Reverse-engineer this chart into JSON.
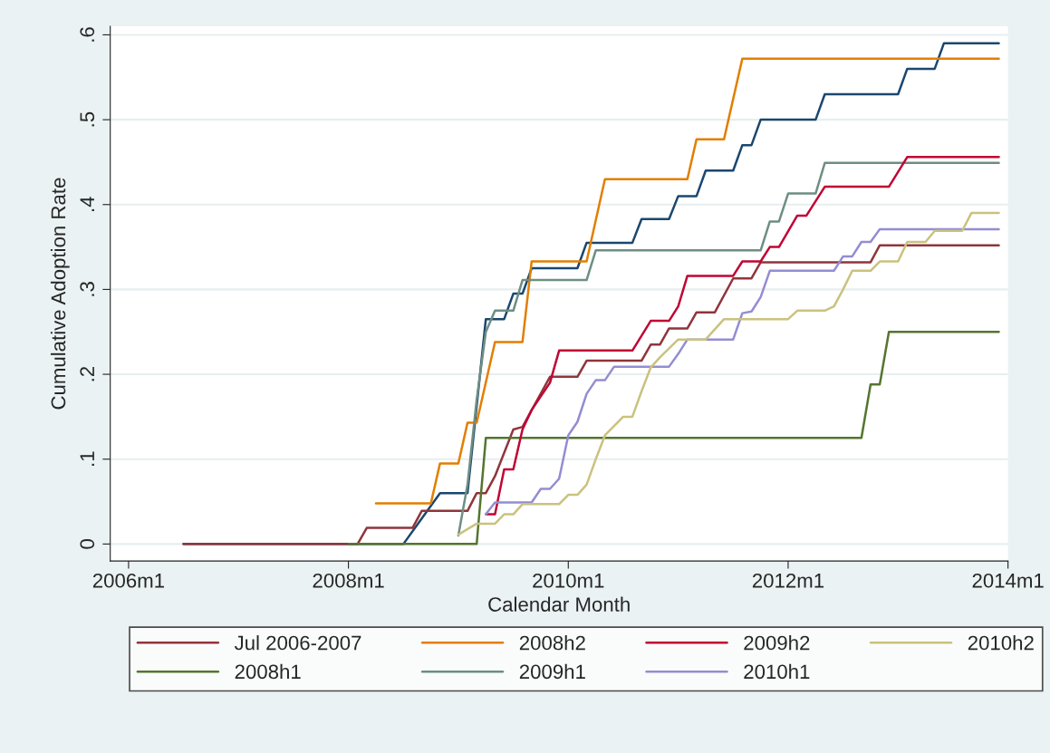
{
  "chart_data": {
    "type": "line",
    "xlabel": "Calendar Month",
    "ylabel": "Cumulative Adoption Rate",
    "xlim": [
      "2005-11",
      "2014-01"
    ],
    "ylim": [
      -0.02,
      0.61
    ],
    "xticks": [
      {
        "value": "2006-01",
        "label": "2006m1"
      },
      {
        "value": "2008-01",
        "label": "2008m1"
      },
      {
        "value": "2010-01",
        "label": "2010m1"
      },
      {
        "value": "2012-01",
        "label": "2012m1"
      },
      {
        "value": "2014-01",
        "label": "2014m1"
      }
    ],
    "yticks": [
      0,
      {
        "value": 0.1,
        "label": ".1"
      },
      {
        "value": 0.2,
        "label": ".2"
      },
      {
        "value": 0.3,
        "label": ".3"
      },
      {
        "value": 0.4,
        "label": ".4"
      },
      {
        "value": 0.5,
        "label": ".5"
      },
      {
        "value": 0.6,
        "label": ".6"
      }
    ],
    "grid": "y",
    "legend": "bottom",
    "marker": "none",
    "line_style": "solid",
    "series": [
      {
        "color": "#1a476f",
        "x": [
          "2006-07",
          "2008-07",
          "2008-09",
          "2008-11",
          "2009-02",
          "2009-04",
          "2009-06",
          "2009-07",
          "2009-08",
          "2009-09",
          "2010-02",
          "2010-03",
          "2010-08",
          "2010-09",
          "2010-12",
          "2011-01",
          "2011-03",
          "2011-04",
          "2011-07",
          "2011-08",
          "2011-09",
          "2011-10",
          "2012-04",
          "2012-05",
          "2013-01",
          "2013-02",
          "2013-05",
          "2013-06",
          "2013-12"
        ],
        "values": [
          0,
          0,
          0.03,
          0.06,
          0.06,
          0.265,
          0.265,
          0.295,
          0.295,
          0.325,
          0.325,
          0.355,
          0.355,
          0.383,
          0.383,
          0.41,
          0.41,
          0.44,
          0.44,
          0.47,
          0.47,
          0.5,
          0.5,
          0.53,
          0.53,
          0.56,
          0.56,
          0.59,
          0.59
        ]
      },
      {
        "name": "Jul 2006-2007",
        "color": "#90353b",
        "x": [
          "2006-07",
          "2008-02",
          "2008-03",
          "2008-08",
          "2008-09",
          "2009-02",
          "2009-03",
          "2009-04",
          "2009-05",
          "2009-07",
          "2009-08",
          "2009-11",
          "2010-02",
          "2010-03",
          "2010-09",
          "2010-10",
          "2010-11",
          "2010-12",
          "2011-02",
          "2011-03",
          "2011-05",
          "2011-07",
          "2011-09",
          "2011-10",
          "2012-10",
          "2012-11",
          "2013-12"
        ],
        "values": [
          0,
          0,
          0.019,
          0.019,
          0.039,
          0.039,
          0.06,
          0.06,
          0.08,
          0.135,
          0.138,
          0.197,
          0.197,
          0.216,
          0.216,
          0.235,
          0.235,
          0.254,
          0.254,
          0.273,
          0.273,
          0.313,
          0.313,
          0.332,
          0.332,
          0.352,
          0.352
        ]
      },
      {
        "name": "2008h1",
        "color": "#55752f",
        "x": [
          "2008-01",
          "2009-03",
          "2009-04",
          "2012-09",
          "2012-10",
          "2012-11",
          "2012-12",
          "2013-12"
        ],
        "values": [
          0,
          0,
          0.125,
          0.125,
          0.188,
          0.188,
          0.25,
          0.25
        ]
      },
      {
        "name": "2008h2",
        "color": "#e37e00",
        "x": [
          "2008-04",
          "2008-10",
          "2008-11",
          "2009-01",
          "2009-02",
          "2009-03",
          "2009-05",
          "2009-08",
          "2009-09",
          "2010-03",
          "2010-05",
          "2011-02",
          "2011-03",
          "2011-06",
          "2011-08",
          "2013-12"
        ],
        "values": [
          0.048,
          0.048,
          0.095,
          0.095,
          0.143,
          0.143,
          0.238,
          0.238,
          0.333,
          0.333,
          0.43,
          0.43,
          0.477,
          0.477,
          0.572,
          0.572
        ]
      },
      {
        "name": "2009h1",
        "color": "#6e8e84",
        "x": [
          "2009-01",
          "2009-02",
          "2009-03",
          "2009-04",
          "2009-05",
          "2009-07",
          "2009-08",
          "2010-03",
          "2010-04",
          "2011-10",
          "2011-11",
          "2011-12",
          "2012-01",
          "2012-04",
          "2012-05",
          "2013-12"
        ],
        "values": [
          0.01,
          0.07,
          0.17,
          0.25,
          0.275,
          0.275,
          0.311,
          0.311,
          0.346,
          0.346,
          0.38,
          0.38,
          0.413,
          0.413,
          0.449,
          0.449
        ]
      },
      {
        "name": "2009h2",
        "color": "#c10534",
        "x": [
          "2009-04",
          "2009-05",
          "2009-06",
          "2009-07",
          "2009-08",
          "2009-09",
          "2009-11",
          "2009-12",
          "2010-08",
          "2010-10",
          "2010-12",
          "2011-01",
          "2011-02",
          "2011-07",
          "2011-08",
          "2011-10",
          "2011-11",
          "2011-12",
          "2012-02",
          "2012-03",
          "2012-05",
          "2012-12",
          "2013-02",
          "2013-12"
        ],
        "values": [
          0.035,
          0.035,
          0.088,
          0.088,
          0.135,
          0.158,
          0.19,
          0.228,
          0.228,
          0.263,
          0.263,
          0.28,
          0.316,
          0.316,
          0.333,
          0.333,
          0.35,
          0.35,
          0.387,
          0.387,
          0.421,
          0.421,
          0.456,
          0.456
        ]
      },
      {
        "name": "2010h1",
        "color": "#938dd2",
        "x": [
          "2009-04",
          "2009-05",
          "2009-09",
          "2009-10",
          "2009-11",
          "2009-12",
          "2010-01",
          "2010-02",
          "2010-03",
          "2010-04",
          "2010-05",
          "2010-06",
          "2010-12",
          "2011-01",
          "2011-02",
          "2011-07",
          "2011-08",
          "2011-09",
          "2011-10",
          "2011-11",
          "2012-06",
          "2012-07",
          "2012-08",
          "2012-09",
          "2012-10",
          "2012-11",
          "2013-12"
        ],
        "values": [
          0.035,
          0.049,
          0.049,
          0.065,
          0.065,
          0.077,
          0.128,
          0.144,
          0.177,
          0.193,
          0.193,
          0.209,
          0.209,
          0.224,
          0.241,
          0.241,
          0.272,
          0.274,
          0.291,
          0.322,
          0.322,
          0.339,
          0.339,
          0.356,
          0.356,
          0.371,
          0.371
        ]
      },
      {
        "name": "2010h2",
        "color": "#cac27e",
        "x": [
          "2009-01",
          "2009-03",
          "2009-05",
          "2009-06",
          "2009-07",
          "2009-08",
          "2009-12",
          "2010-01",
          "2010-02",
          "2010-03",
          "2010-04",
          "2010-05",
          "2010-07",
          "2010-08",
          "2010-09",
          "2010-10",
          "2010-11",
          "2011-01",
          "2011-04",
          "2011-06",
          "2012-01",
          "2012-02",
          "2012-05",
          "2012-06",
          "2012-07",
          "2012-08",
          "2012-10",
          "2012-11",
          "2013-01",
          "2013-02",
          "2013-04",
          "2013-05",
          "2013-08",
          "2013-09",
          "2013-12"
        ],
        "values": [
          0.011,
          0.024,
          0.024,
          0.035,
          0.035,
          0.047,
          0.047,
          0.058,
          0.058,
          0.07,
          0.1,
          0.128,
          0.15,
          0.15,
          0.18,
          0.208,
          0.22,
          0.241,
          0.241,
          0.265,
          0.265,
          0.275,
          0.275,
          0.28,
          0.3,
          0.322,
          0.322,
          0.333,
          0.333,
          0.356,
          0.356,
          0.369,
          0.369,
          0.39,
          0.39
        ]
      }
    ]
  }
}
